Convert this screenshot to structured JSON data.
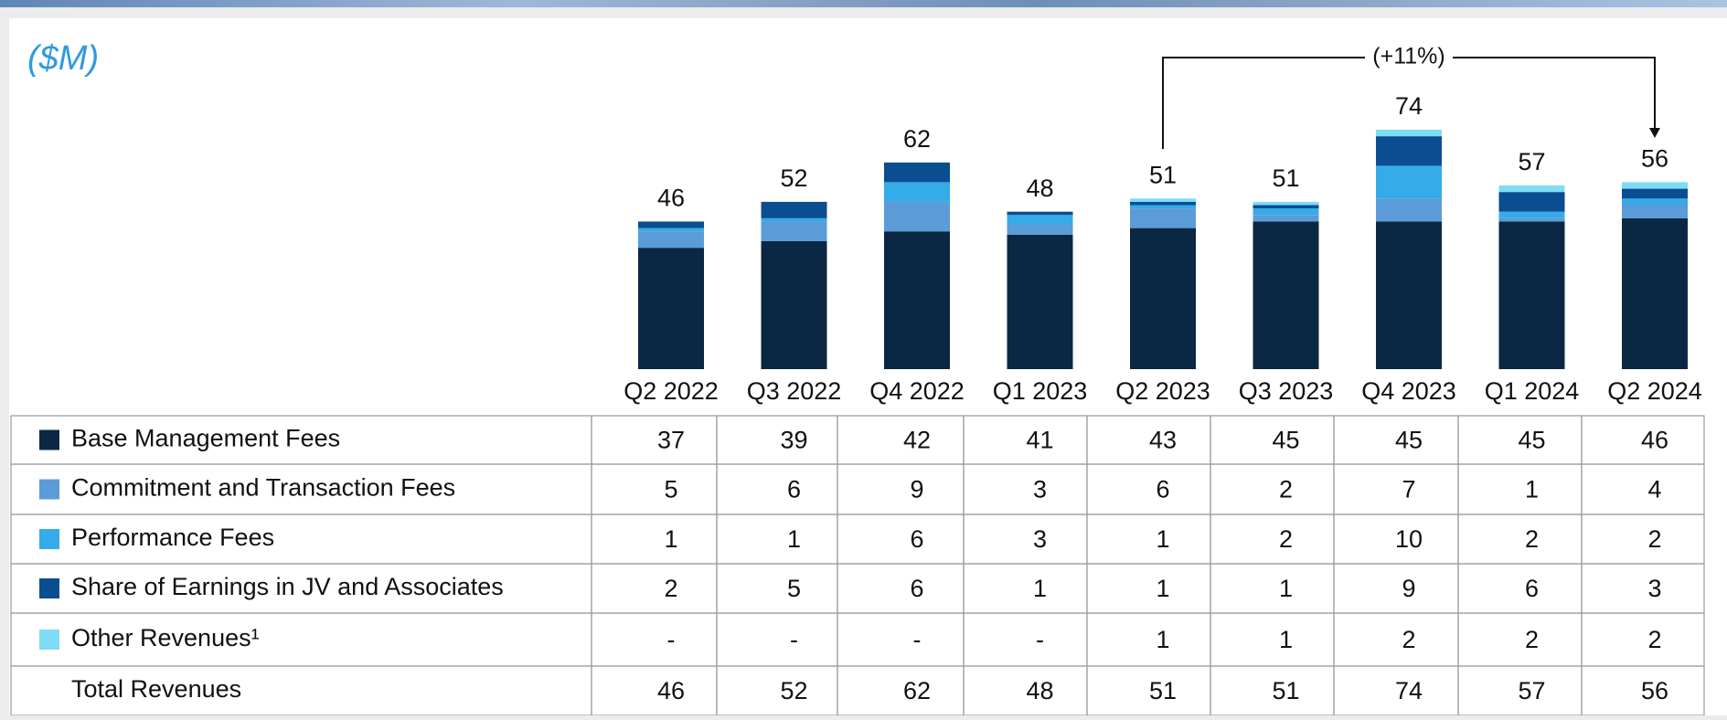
{
  "chart_data": {
    "type": "bar",
    "stacked": true,
    "unit_label": "($M)",
    "categories": [
      "Q2 2022",
      "Q3 2022",
      "Q4 2022",
      "Q1 2023",
      "Q2 2023",
      "Q3 2023",
      "Q4 2023",
      "Q1 2024",
      "Q2 2024"
    ],
    "series": [
      {
        "name": "Base Management Fees",
        "color": "#0a2843",
        "values": [
          37,
          39,
          42,
          41,
          43,
          45,
          45,
          45,
          46
        ]
      },
      {
        "name": "Commitment and Transaction Fees",
        "color": "#5b9bd8",
        "values": [
          5,
          6,
          9,
          3,
          6,
          2,
          7,
          1,
          4
        ]
      },
      {
        "name": "Performance Fees",
        "color": "#35abe8",
        "values": [
          1,
          1,
          6,
          3,
          1,
          2,
          10,
          2,
          2
        ]
      },
      {
        "name": "Share of Earnings in JV and Associates",
        "color": "#0b4d91",
        "values": [
          2,
          5,
          6,
          1,
          1,
          1,
          9,
          6,
          3
        ]
      },
      {
        "name": "Other Revenues¹",
        "color": "#7fdcf7",
        "values": [
          null,
          null,
          null,
          null,
          1,
          1,
          2,
          2,
          2
        ],
        "value_labels": [
          "-",
          "-",
          "-",
          "-",
          "1",
          "1",
          "2",
          "2",
          "2"
        ]
      }
    ],
    "totals_name": "Total Revenues",
    "totals": [
      46,
      52,
      62,
      48,
      51,
      51,
      74,
      57,
      56
    ],
    "annotation": {
      "text": "(+11%)",
      "from": "Q2 2023",
      "to": "Q2 2024"
    }
  }
}
